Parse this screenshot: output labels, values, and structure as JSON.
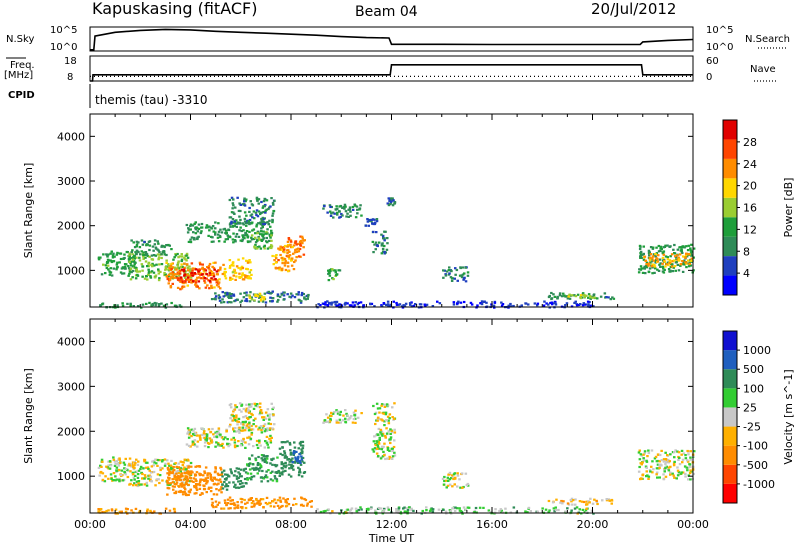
{
  "header": {
    "station": "Kapuskasing (fitACF)",
    "beam": "Beam 04",
    "date": "20/Jul/2012",
    "cpid_text": "themis (tau)  -3310"
  },
  "labels": {
    "n_sky": "N.Sky",
    "n_search": "N.Search",
    "freq_line1": "Freq.",
    "freq_line2": "[MHz]",
    "cpid": "CPID",
    "nave": "Nave",
    "tick_1e5": "10^5",
    "tick_1e0": "10^0",
    "freq_ticks": [
      "18",
      "8"
    ],
    "nave_ticks": [
      "60",
      "0"
    ]
  },
  "colors": {
    "power_scale": [
      "#0000ff",
      "#1f3fbf",
      "#2e8b57",
      "#1e9e3a",
      "#9acd32",
      "#ffd700",
      "#ff8c00",
      "#ff4500",
      "#e00000"
    ],
    "velocity_scale": [
      "#ff0000",
      "#ff4500",
      "#ff8c00",
      "#ffb000",
      "#c8c8c8",
      "#32cd32",
      "#2e8b57",
      "#1f5fbf",
      "#1010d0"
    ]
  },
  "chart_data": [
    {
      "type": "line",
      "name_left": "N.Sky",
      "name_right": "N.Search",
      "x_range": [
        0,
        24
      ],
      "y_scale": "log",
      "y_ticks": [
        "10^0",
        "10^5"
      ],
      "series": [
        {
          "name": "N.Sky",
          "x": [
            0.0,
            0.15,
            0.2,
            1,
            2,
            3,
            4,
            5,
            6,
            7,
            8,
            9,
            10,
            11,
            11.9,
            12.0,
            14,
            16,
            18,
            20,
            21.9,
            22.0,
            23,
            24
          ],
          "y_frac": [
            0.05,
            0.05,
            0.62,
            0.78,
            0.86,
            0.9,
            0.88,
            0.82,
            0.78,
            0.74,
            0.7,
            0.66,
            0.6,
            0.56,
            0.54,
            0.28,
            0.28,
            0.27,
            0.27,
            0.27,
            0.27,
            0.38,
            0.44,
            0.48
          ]
        }
      ]
    },
    {
      "type": "line",
      "left_label": "Freq. [MHz]",
      "right_label": "Nave",
      "x_range": [
        0,
        24
      ],
      "left_ticks": [
        18,
        8
      ],
      "right_ticks": [
        60,
        0
      ],
      "series": [
        {
          "name": "Freq",
          "x": [
            0,
            0.1,
            0.12,
            11.95,
            12.0,
            21.95,
            22.0,
            24
          ],
          "y": [
            8,
            8,
            10.5,
            10.5,
            14.5,
            14.5,
            10.5,
            10.5
          ]
        },
        {
          "name": "Nave",
          "x": [
            0,
            24
          ],
          "y": [
            11,
            11
          ]
        }
      ]
    },
    {
      "type": "heatmap",
      "panel": "power",
      "ylabel": "Slant Range [km]",
      "xlim": [
        0,
        24
      ],
      "ylim": [
        180,
        4500
      ],
      "y_ticks": [
        1000,
        2000,
        3000,
        4000
      ],
      "colorbar_label": "Power [dB]",
      "colorbar_ticks": [
        4,
        8,
        12,
        16,
        20,
        24,
        28
      ],
      "colorbar_range": [
        0,
        30
      ],
      "regions": [
        {
          "t0": 0.3,
          "t1": 1.8,
          "r0": 900,
          "r1": 1450,
          "v": 11
        },
        {
          "t0": 1.5,
          "t1": 4.0,
          "r0": 800,
          "r1": 1400,
          "v": 14
        },
        {
          "t0": 3.0,
          "t1": 5.2,
          "r0": 600,
          "r1": 1200,
          "v": 22
        },
        {
          "t0": 3.4,
          "t1": 5.0,
          "r0": 750,
          "r1": 1050,
          "v": 27
        },
        {
          "t0": 1.6,
          "t1": 3.2,
          "r0": 1350,
          "r1": 1700,
          "v": 9
        },
        {
          "t0": 3.8,
          "t1": 7.2,
          "r0": 1650,
          "r1": 2100,
          "v": 10
        },
        {
          "t0": 5.5,
          "t1": 7.3,
          "r0": 2050,
          "r1": 2650,
          "v": 8
        },
        {
          "t0": 5.2,
          "t1": 6.4,
          "r0": 800,
          "r1": 1300,
          "v": 19
        },
        {
          "t0": 6.4,
          "t1": 7.2,
          "r0": 1500,
          "r1": 1900,
          "v": 13
        },
        {
          "t0": 7.2,
          "t1": 8.2,
          "r0": 1000,
          "r1": 1600,
          "v": 21
        },
        {
          "t0": 7.8,
          "t1": 8.5,
          "r0": 1300,
          "r1": 1800,
          "v": 23
        },
        {
          "t0": 4.8,
          "t1": 8.8,
          "r0": 300,
          "r1": 550,
          "v": 7
        },
        {
          "t0": 6.2,
          "t1": 6.9,
          "r0": 350,
          "r1": 500,
          "v": 18
        },
        {
          "t0": 0.2,
          "t1": 3.6,
          "r0": 190,
          "r1": 300,
          "v": 9
        },
        {
          "t0": 9.2,
          "t1": 10.8,
          "r0": 2200,
          "r1": 2500,
          "v": 8
        },
        {
          "t0": 10.9,
          "t1": 11.4,
          "r0": 2000,
          "r1": 2200,
          "v": 6
        },
        {
          "t0": 9.4,
          "t1": 9.9,
          "r0": 800,
          "r1": 1050,
          "v": 12
        },
        {
          "t0": 11.2,
          "t1": 11.8,
          "r0": 1400,
          "r1": 1900,
          "v": 8
        },
        {
          "t0": 11.8,
          "t1": 12.1,
          "r0": 2450,
          "r1": 2650,
          "v": 7
        },
        {
          "t0": 14.0,
          "t1": 15.0,
          "r0": 750,
          "r1": 1100,
          "v": 8
        },
        {
          "t0": 18.2,
          "t1": 20.8,
          "r0": 380,
          "r1": 520,
          "v": 9
        },
        {
          "t0": 19.0,
          "t1": 20.2,
          "r0": 400,
          "r1": 480,
          "v": 15
        },
        {
          "t0": 21.8,
          "t1": 24.0,
          "r0": 950,
          "r1": 1600,
          "v": 10
        },
        {
          "t0": 22.0,
          "t1": 24.0,
          "r0": 1100,
          "r1": 1400,
          "v": 20
        },
        {
          "t0": 9.0,
          "t1": 20.0,
          "r0": 190,
          "r1": 330,
          "v": 4
        }
      ]
    },
    {
      "type": "heatmap",
      "panel": "velocity",
      "ylabel": "Slant Range [km]",
      "xlabel": "Time UT",
      "xlim": [
        0,
        24
      ],
      "ylim": [
        180,
        4500
      ],
      "y_ticks": [
        1000,
        2000,
        3000,
        4000
      ],
      "x_ticks": [
        "00:00",
        "04:00",
        "08:00",
        "12:00",
        "16:00",
        "20:00",
        "00:00"
      ],
      "colorbar_label": "Velocity [m s^-1]",
      "colorbar_ticks": [
        "-1000",
        "-500",
        "-100",
        "-25",
        "25",
        "100",
        "500",
        "1000"
      ],
      "regions": [
        {
          "t0": 0.3,
          "t1": 1.8,
          "r0": 900,
          "r1": 1450,
          "v": 0
        },
        {
          "t0": 1.5,
          "t1": 4.0,
          "r0": 800,
          "r1": 1400,
          "v": 0
        },
        {
          "t0": 3.8,
          "t1": 7.2,
          "r0": 1650,
          "r1": 2100,
          "v": 0
        },
        {
          "t0": 5.5,
          "t1": 7.3,
          "r0": 2050,
          "r1": 2650,
          "v": 0
        },
        {
          "t0": 9.2,
          "t1": 10.8,
          "r0": 2200,
          "r1": 2500,
          "v": 0
        },
        {
          "t0": 11.2,
          "t1": 12.1,
          "r0": 1400,
          "r1": 2650,
          "v": 0
        },
        {
          "t0": 14.0,
          "t1": 15.0,
          "r0": 750,
          "r1": 1100,
          "v": 0
        },
        {
          "t0": 21.8,
          "t1": 24.0,
          "r0": 950,
          "r1": 1600,
          "v": 0
        },
        {
          "t0": 3.0,
          "t1": 5.2,
          "r0": 600,
          "r1": 1250,
          "v": -180
        },
        {
          "t0": 3.3,
          "t1": 4.8,
          "r0": 800,
          "r1": 1100,
          "v": -400
        },
        {
          "t0": 5.2,
          "t1": 6.2,
          "r0": 700,
          "r1": 1200,
          "v": 200
        },
        {
          "t0": 6.2,
          "t1": 7.5,
          "r0": 900,
          "r1": 1500,
          "v": 120
        },
        {
          "t0": 7.5,
          "t1": 8.5,
          "r0": 1000,
          "r1": 1800,
          "v": 250
        },
        {
          "t0": 8.0,
          "t1": 8.4,
          "r0": 1300,
          "r1": 1600,
          "v": 600
        },
        {
          "t0": 4.8,
          "t1": 8.8,
          "r0": 300,
          "r1": 550,
          "v": -150
        },
        {
          "t0": 0.2,
          "t1": 3.6,
          "r0": 190,
          "r1": 300,
          "v": -120
        },
        {
          "t0": 18.2,
          "t1": 20.8,
          "r0": 380,
          "r1": 520,
          "v": -60
        },
        {
          "t0": 9.0,
          "t1": 20.0,
          "r0": 190,
          "r1": 330,
          "v": 50
        }
      ]
    }
  ]
}
